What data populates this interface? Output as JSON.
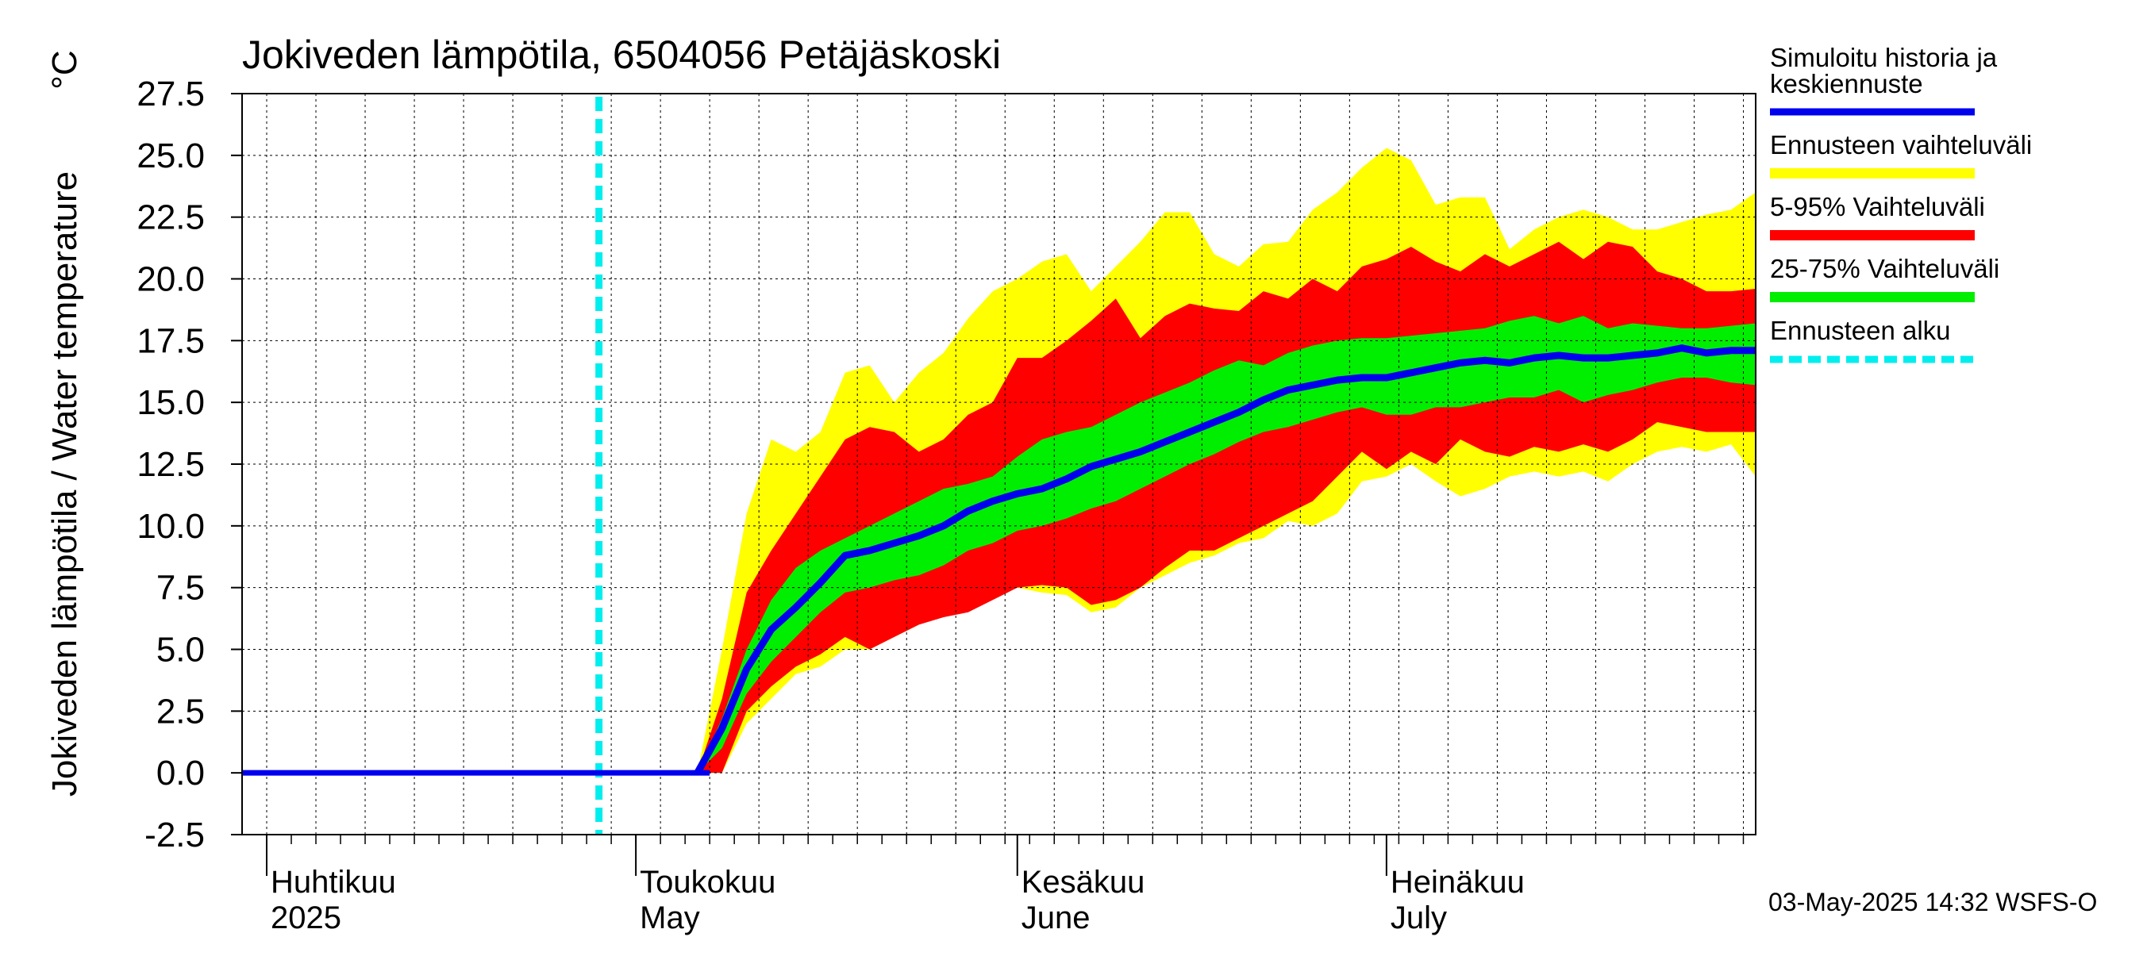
{
  "chart_data": {
    "type": "area",
    "title": "Jokiveden lämpötila, 6504056 Petäjäskoski",
    "ylabel": "Jokiveden lämpötila / Water temperature",
    "yunit": "°C",
    "ylim": [
      -2.5,
      27.5
    ],
    "yticks": [
      -2.5,
      0.0,
      2.5,
      5.0,
      7.5,
      10.0,
      12.5,
      15.0,
      17.5,
      20.0,
      22.5,
      25.0,
      27.5
    ],
    "ytick_labels": [
      "-2.5",
      "0.0",
      "2.5",
      "5.0",
      "7.5",
      "10.0",
      "12.5",
      "15.0",
      "17.5",
      "20.0",
      "22.5",
      "25.0",
      "27.5"
    ],
    "xlim": [
      "2025-03-30",
      "2025-07-31"
    ],
    "grid": true,
    "month_labels": [
      {
        "date": "2025-04-01",
        "line1": "Huhtikuu",
        "line2": "2025"
      },
      {
        "date": "2025-05-01",
        "line1": "Toukokuu",
        "line2": "May"
      },
      {
        "date": "2025-06-01",
        "line1": "Kesäkuu",
        "line2": "June"
      },
      {
        "date": "2025-07-01",
        "line1": "Heinäkuu",
        "line2": "July"
      }
    ],
    "forecast_start": "2025-04-28",
    "legend": [
      {
        "label": "Simuloitu historia ja keskiennuste",
        "lines": [
          "Simuloitu historia ja",
          "keskiennuste"
        ],
        "color": "#0000ee",
        "style": "solid"
      },
      {
        "label": "Ennusteen vaihteluväli",
        "lines": [
          "Ennusteen vaihteluväli"
        ],
        "color": "#ffff00",
        "style": "band"
      },
      {
        "label": "5-95% Vaihteluväli",
        "lines": [
          "5-95% Vaihteluväli"
        ],
        "color": "#ff0000",
        "style": "band"
      },
      {
        "label": "25-75% Vaihteluväli",
        "lines": [
          "25-75% Vaihteluväli"
        ],
        "color": "#00ee00",
        "style": "band"
      },
      {
        "label": "Ennusteen alku",
        "lines": [
          "Ennusteen alku"
        ],
        "color": "#00eeee",
        "style": "dashed"
      }
    ],
    "legend_position": "right",
    "x": [
      "2025-05-06",
      "2025-05-08",
      "2025-05-10",
      "2025-05-12",
      "2025-05-14",
      "2025-05-16",
      "2025-05-18",
      "2025-05-20",
      "2025-05-22",
      "2025-05-24",
      "2025-05-26",
      "2025-05-28",
      "2025-05-30",
      "2025-06-01",
      "2025-06-03",
      "2025-06-05",
      "2025-06-07",
      "2025-06-09",
      "2025-06-11",
      "2025-06-13",
      "2025-06-15",
      "2025-06-17",
      "2025-06-19",
      "2025-06-21",
      "2025-06-23",
      "2025-06-25",
      "2025-06-27",
      "2025-06-29",
      "2025-07-01",
      "2025-07-03",
      "2025-07-05",
      "2025-07-07",
      "2025-07-09",
      "2025-07-11",
      "2025-07-13",
      "2025-07-15",
      "2025-07-17",
      "2025-07-19",
      "2025-07-21",
      "2025-07-23",
      "2025-07-25",
      "2025-07-27",
      "2025-07-29",
      "2025-07-31"
    ],
    "series": {
      "total_upper": [
        0,
        5.0,
        10.5,
        13.5,
        13.0,
        13.8,
        16.2,
        16.5,
        15.0,
        16.2,
        17.0,
        18.4,
        19.5,
        20.0,
        20.7,
        21.0,
        19.5,
        20.5,
        21.5,
        22.7,
        22.7,
        21.0,
        20.5,
        21.4,
        21.5,
        22.8,
        23.5,
        24.5,
        25.3,
        24.8,
        23.0,
        23.3,
        23.3,
        21.2,
        22.0,
        22.5,
        22.8,
        22.5,
        22.0,
        22.0,
        22.3,
        22.6,
        22.8,
        23.5
      ],
      "p95": [
        0,
        3.0,
        7.3,
        9.0,
        10.5,
        12.0,
        13.5,
        14.0,
        13.8,
        13.0,
        13.5,
        14.5,
        15.0,
        16.8,
        16.8,
        17.5,
        18.3,
        19.2,
        17.6,
        18.5,
        19.0,
        18.8,
        18.7,
        19.5,
        19.2,
        20.0,
        19.5,
        20.5,
        20.8,
        21.3,
        20.7,
        20.3,
        21.0,
        20.5,
        21.0,
        21.5,
        20.8,
        21.5,
        21.3,
        20.3,
        20.0,
        19.5,
        19.5,
        19.6
      ],
      "p75": [
        0,
        2.2,
        5.0,
        7.0,
        8.3,
        9.0,
        9.5,
        10.0,
        10.5,
        11.0,
        11.5,
        11.7,
        12.0,
        12.8,
        13.5,
        13.8,
        14.0,
        14.5,
        15.0,
        15.4,
        15.8,
        16.3,
        16.7,
        16.5,
        17.0,
        17.3,
        17.5,
        17.6,
        17.6,
        17.7,
        17.8,
        17.9,
        18.0,
        18.3,
        18.5,
        18.2,
        18.5,
        18.0,
        18.2,
        18.1,
        18.0,
        18.0,
        18.1,
        18.2
      ],
      "median": [
        0,
        1.8,
        4.2,
        5.8,
        6.7,
        7.7,
        8.8,
        9.0,
        9.3,
        9.6,
        10.0,
        10.6,
        11.0,
        11.3,
        11.5,
        11.9,
        12.4,
        12.7,
        13.0,
        13.4,
        13.8,
        14.2,
        14.6,
        15.1,
        15.5,
        15.7,
        15.9,
        16.0,
        16.0,
        16.2,
        16.4,
        16.6,
        16.7,
        16.6,
        16.8,
        16.9,
        16.8,
        16.8,
        16.9,
        17.0,
        17.2,
        17.0,
        17.1,
        17.1
      ],
      "p25": [
        0,
        1.0,
        3.2,
        4.5,
        5.5,
        6.5,
        7.3,
        7.5,
        7.8,
        8.0,
        8.4,
        9.0,
        9.3,
        9.8,
        10.0,
        10.3,
        10.7,
        11.0,
        11.5,
        12.0,
        12.5,
        12.9,
        13.4,
        13.8,
        14.0,
        14.3,
        14.6,
        14.8,
        14.5,
        14.5,
        14.8,
        14.8,
        15.0,
        15.2,
        15.2,
        15.5,
        15.0,
        15.3,
        15.5,
        15.8,
        16.0,
        16.0,
        15.8,
        15.7
      ],
      "p05": [
        0,
        0,
        2.5,
        3.5,
        4.3,
        4.8,
        5.5,
        5.0,
        5.5,
        6.0,
        6.3,
        6.5,
        7.0,
        7.5,
        7.6,
        7.5,
        6.8,
        7.0,
        7.5,
        8.3,
        9.0,
        9.0,
        9.5,
        10.0,
        10.5,
        11.0,
        12.0,
        13.0,
        12.3,
        13.0,
        12.5,
        13.5,
        13.0,
        12.8,
        13.2,
        13.0,
        13.3,
        13.0,
        13.5,
        14.2,
        14.0,
        13.8,
        13.8,
        13.8
      ],
      "total_lower": [
        0,
        0,
        2.0,
        3.0,
        4.0,
        4.3,
        5.0,
        5.0,
        5.5,
        6.0,
        7.0,
        7.3,
        7.5,
        7.5,
        7.3,
        7.2,
        6.5,
        6.7,
        7.5,
        8.0,
        8.5,
        8.8,
        9.3,
        9.5,
        10.2,
        10.0,
        10.5,
        11.8,
        12.0,
        12.5,
        11.8,
        11.2,
        11.5,
        12.0,
        12.2,
        12.0,
        12.2,
        11.8,
        12.5,
        13.0,
        13.2,
        13.0,
        13.3,
        12.0
      ],
      "history": {
        "x": [
          "2025-03-30",
          "2025-05-07"
        ],
        "y": [
          0.0,
          0.0
        ]
      }
    }
  },
  "footer": {
    "timestamp": "03-May-2025 14:32 WSFS-O"
  }
}
